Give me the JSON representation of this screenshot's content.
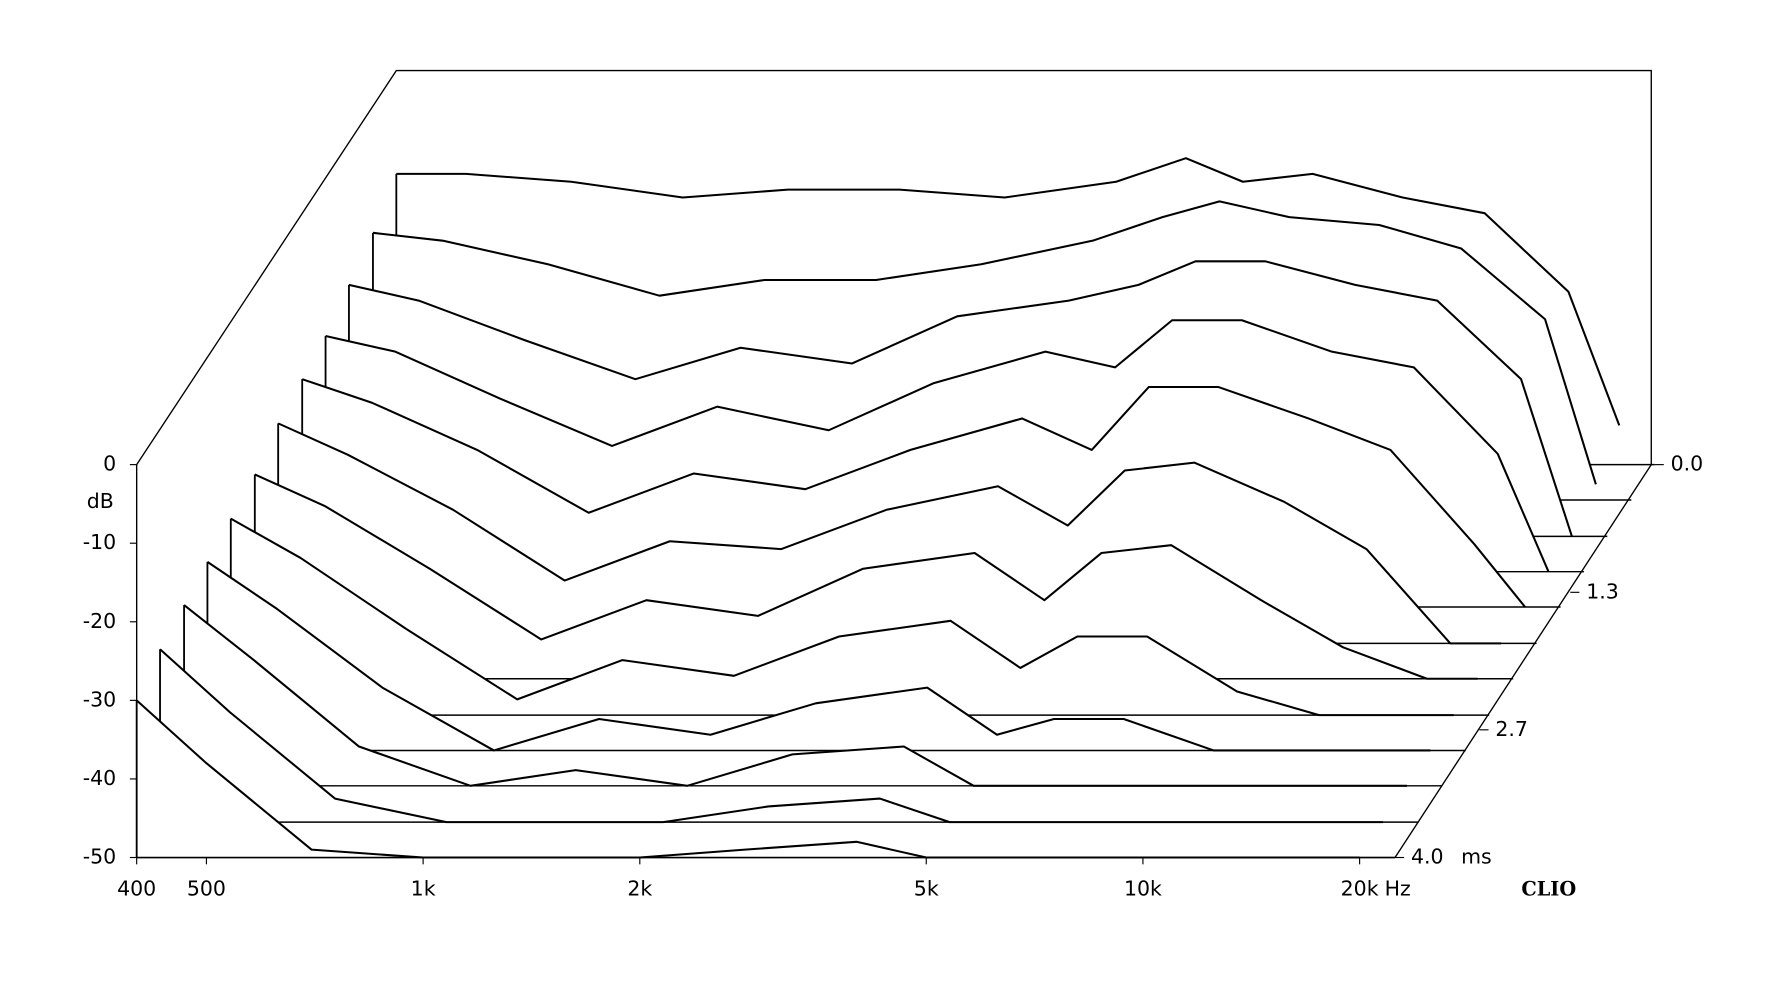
{
  "chart_data": {
    "type": "waterfall",
    "brand": "CLIO",
    "x_unit": "Hz",
    "y_label": "dB",
    "z_unit": "ms",
    "line_color": "#000000",
    "fill_color": "#ffffff",
    "log_x": true,
    "x": [
      400,
      500,
      700,
      1000,
      1400,
      2000,
      2800,
      4000,
      5000,
      6000,
      7500,
      10000,
      13000,
      17000,
      20000
    ],
    "z": [
      0,
      0.36,
      0.73,
      1.09,
      1.45,
      1.82,
      2.18,
      2.55,
      2.91,
      3.27,
      3.64,
      4.0
    ],
    "series": [
      {
        "values": [
          -13,
          -13,
          -14,
          -16,
          -15,
          -15,
          -16,
          -14,
          -11,
          -14,
          -13,
          -16,
          -18,
          -28,
          -45
        ]
      },
      {
        "values": [
          -16,
          -17,
          -20,
          -24,
          -22,
          -22,
          -20,
          -17,
          -14,
          -12,
          -14,
          -15,
          -18,
          -27,
          -48
        ]
      },
      {
        "values": [
          -18,
          -20,
          -25,
          -30,
          -26,
          -28,
          -22,
          -20,
          -18,
          -15,
          -15,
          -18,
          -20,
          -30,
          -50
        ]
      },
      {
        "values": [
          -20,
          -22,
          -28,
          -34,
          -29,
          -32,
          -26,
          -22,
          -24,
          -18,
          -18,
          -22,
          -24,
          -35,
          -50
        ]
      },
      {
        "values": [
          -21,
          -24,
          -30,
          -38,
          -33,
          -35,
          -30,
          -26,
          -30,
          -22,
          -22,
          -26,
          -30,
          -42,
          -50
        ]
      },
      {
        "values": [
          -22,
          -26,
          -33,
          -42,
          -37,
          -38,
          -33,
          -30,
          -35,
          -28,
          -27,
          -32,
          -38,
          -50,
          -50
        ]
      },
      {
        "values": [
          -24,
          -28,
          -36,
          -45,
          -40,
          -42,
          -36,
          -34,
          -40,
          -34,
          -33,
          -40,
          -46,
          -50,
          -50
        ]
      },
      {
        "values": [
          -25,
          -30,
          -39,
          -48,
          -43,
          -45,
          -40,
          -38,
          -44,
          -40,
          -40,
          -47,
          -50,
          -50,
          -50
        ]
      },
      {
        "values": [
          -26,
          -32,
          -42,
          -50,
          -46,
          -48,
          -44,
          -42,
          -48,
          -46,
          -46,
          -50,
          -50,
          -50,
          -50
        ]
      },
      {
        "values": [
          -27,
          -34,
          -45,
          -50,
          -48,
          -50,
          -46,
          -45,
          -50,
          -50,
          -50,
          -50,
          -50,
          -50,
          -50
        ]
      },
      {
        "values": [
          -28,
          -36,
          -47,
          -50,
          -50,
          -50,
          -48,
          -47,
          -50,
          -50,
          -50,
          -50,
          -50,
          -50,
          -50
        ]
      },
      {
        "values": [
          -30,
          -38,
          -49,
          -50,
          -50,
          -50,
          -49,
          -48,
          -50,
          -50,
          -50,
          -50,
          -50,
          -50,
          -50
        ]
      }
    ],
    "xlim": [
      400,
      22400
    ],
    "xticks": [
      400,
      500,
      {
        "value": 1000,
        "label": "1k"
      },
      {
        "value": 2000,
        "label": "2k"
      },
      {
        "value": 5000,
        "label": "5k"
      },
      {
        "value": 10000,
        "label": "10k"
      },
      {
        "value": 20000,
        "label": "20k"
      }
    ],
    "ylim": [
      -50,
      0
    ],
    "yticks": [
      0,
      -10,
      -20,
      -30,
      -40,
      -50
    ],
    "zlim": [
      0,
      4.0
    ],
    "zticks": [
      {
        "value": 0,
        "label": "0.0"
      },
      1.3,
      2.7,
      {
        "value": 4.0,
        "label": "4.0"
      }
    ]
  }
}
